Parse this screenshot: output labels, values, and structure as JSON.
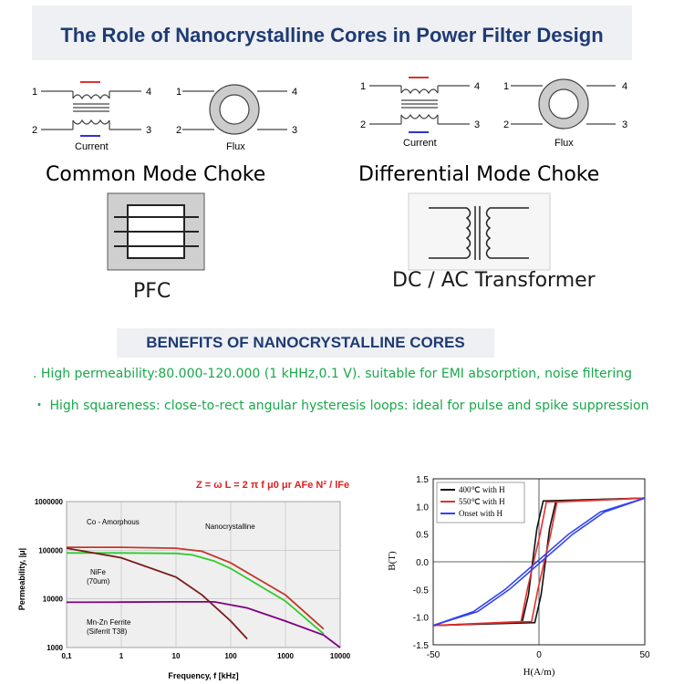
{
  "header": {
    "title": "The Role of Nanocrystalline Cores in Power Filter Design"
  },
  "diagrams": {
    "pin_labels": [
      "1",
      "2",
      "3",
      "4"
    ],
    "current_label": "Current",
    "flux_label": "Flux",
    "common_mode_label": "Common Mode Choke",
    "differential_mode_label": "Differential Mode Choke",
    "pfc_label": "PFC",
    "transformer_label": "DC / AC  Transformer"
  },
  "benefits": {
    "title": "BENEFITS OF NANOCRYSTALLINE CORES",
    "items": [
      ". High permeability:80.000-120.000 (1 kHHz,0.1 V). suitable for EMI absorption, noise filtering",
      "・ High squareness: close-to-rect angular hysteresis loops: ideal for pulse and spike suppression"
    ]
  },
  "colors": {
    "title": "#1f3b73",
    "benefit_text": "#19a84a",
    "title_bg": "#eef0f4"
  },
  "chart_data": [
    {
      "type": "line",
      "formula": "Z = ω L = 2 π f μ0 μr AFe N² / lFe",
      "ylabel": "Permeability, |μ|",
      "xlabel": "Frequency, f  [kHz]",
      "xscale": "log",
      "yscale": "log",
      "xlim": [
        0.1,
        10000
      ],
      "ylim": [
        1000,
        1000000
      ],
      "x_ticks": [
        "0,1",
        "1",
        "10",
        "100",
        "1000",
        "10000"
      ],
      "y_ticks": [
        "1000",
        "10000",
        "100000",
        "1000000"
      ],
      "series": [
        {
          "name": "Nanocrystalline",
          "color": "#c0392b",
          "x": [
            0.1,
            1,
            10,
            30,
            100,
            1000,
            5000
          ],
          "y": [
            115000,
            115000,
            110000,
            95000,
            55000,
            12000,
            2400
          ]
        },
        {
          "name": "Co - Amorphous",
          "color": "#2ecc2e",
          "x": [
            0.1,
            1,
            10,
            20,
            50,
            100,
            1000,
            5000
          ],
          "y": [
            88000,
            88000,
            86000,
            80000,
            60000,
            42000,
            9000,
            1900
          ]
        },
        {
          "name": "NiFe (70um)",
          "color": "#7b1a1a",
          "x": [
            0.1,
            1,
            10,
            30,
            100,
            200
          ],
          "y": [
            110000,
            70000,
            28000,
            12000,
            3500,
            1500
          ]
        },
        {
          "name": "Mn-Zn Ferrite (Siferrit T38)",
          "color": "#800080",
          "x": [
            0.1,
            1,
            10,
            50,
            200,
            1000,
            5000,
            10000
          ],
          "y": [
            8500,
            8600,
            8700,
            8700,
            6500,
            3500,
            1800,
            1000
          ]
        }
      ]
    },
    {
      "type": "line",
      "xlabel": "H(A/m)",
      "ylabel": "B(T)",
      "xlim": [
        -50,
        50
      ],
      "ylim": [
        -1.5,
        1.5
      ],
      "x_ticks": [
        "-50",
        "0",
        "50"
      ],
      "y_ticks": [
        "-1.5",
        "-1.0",
        "-0.5",
        "0.0",
        "0.5",
        "1.0",
        "1.5"
      ],
      "legend": "top-left",
      "series": [
        {
          "name": "400℃ with H",
          "color": "#111111",
          "x": [
            -50,
            -5,
            -2,
            0,
            2,
            5,
            50
          ],
          "y": [
            -1.15,
            -1.1,
            -0.6,
            0,
            0.6,
            1.1,
            1.15
          ]
        },
        {
          "name": "550℃ with H",
          "color": "#e03030",
          "x": [
            -50,
            -6,
            -3,
            0,
            3,
            6,
            50
          ],
          "y": [
            -1.15,
            -1.08,
            -0.5,
            0,
            0.5,
            1.08,
            1.15
          ]
        },
        {
          "name": "Onset with H",
          "color": "#3344ee",
          "x": [
            -50,
            -30,
            -15,
            0,
            15,
            30,
            50
          ],
          "y": [
            -1.15,
            -0.9,
            -0.5,
            0,
            0.5,
            0.9,
            1.15
          ]
        }
      ]
    }
  ]
}
